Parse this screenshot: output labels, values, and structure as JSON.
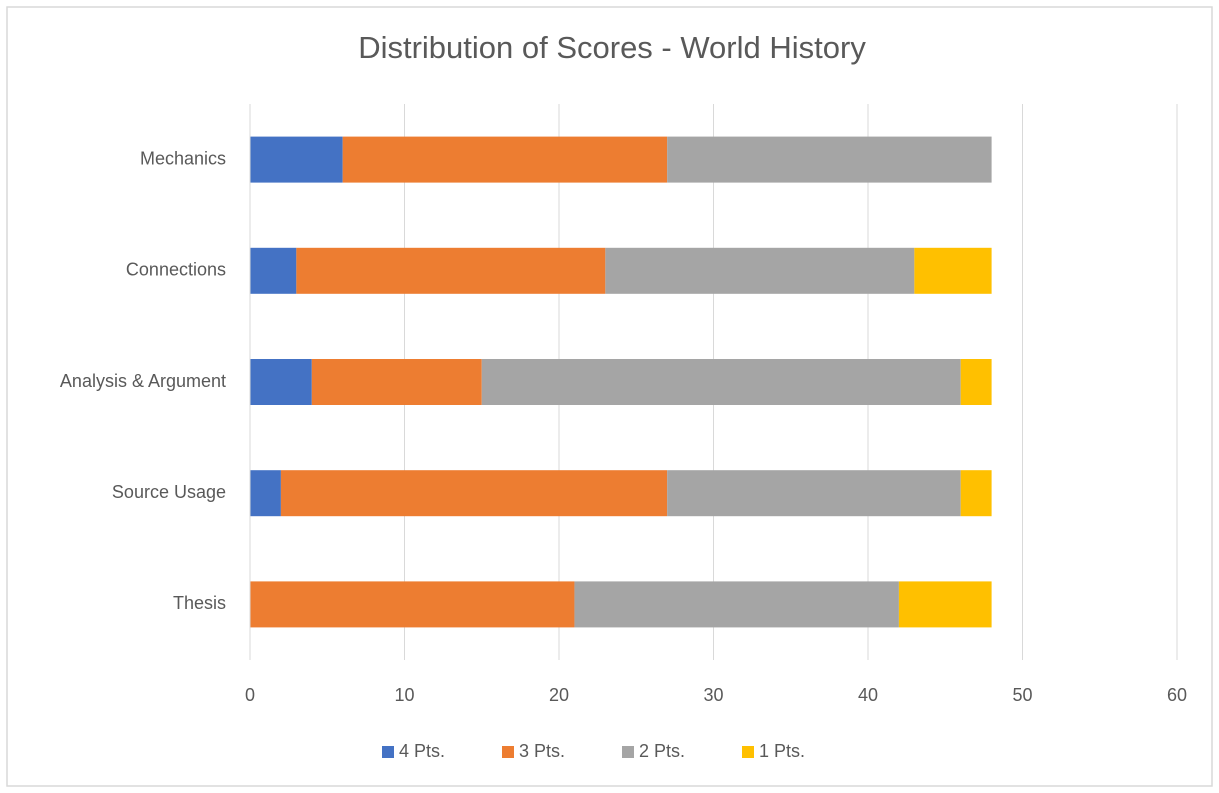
{
  "chart_data": {
    "type": "bar",
    "orientation": "horizontal",
    "stacked": true,
    "title": "Distribution of Scores - World History",
    "categories": [
      "Mechanics",
      "Connections",
      "Analysis & Argument",
      "Source Usage",
      "Thesis"
    ],
    "series": [
      {
        "name": "4 Pts.",
        "color": "#4472c4",
        "values": [
          6,
          3,
          4,
          2,
          0
        ]
      },
      {
        "name": "3 Pts.",
        "color": "#ed7d31",
        "values": [
          21,
          20,
          11,
          25,
          21
        ]
      },
      {
        "name": "2 Pts.",
        "color": "#a5a5a5",
        "values": [
          21,
          20,
          31,
          19,
          21
        ]
      },
      {
        "name": "1 Pts.",
        "color": "#ffc000",
        "values": [
          0,
          5,
          2,
          2,
          6
        ]
      }
    ],
    "xlim": [
      0,
      60
    ],
    "xticks": [
      0,
      10,
      20,
      30,
      40,
      50,
      60
    ],
    "grid": true,
    "legend": "bottom"
  }
}
